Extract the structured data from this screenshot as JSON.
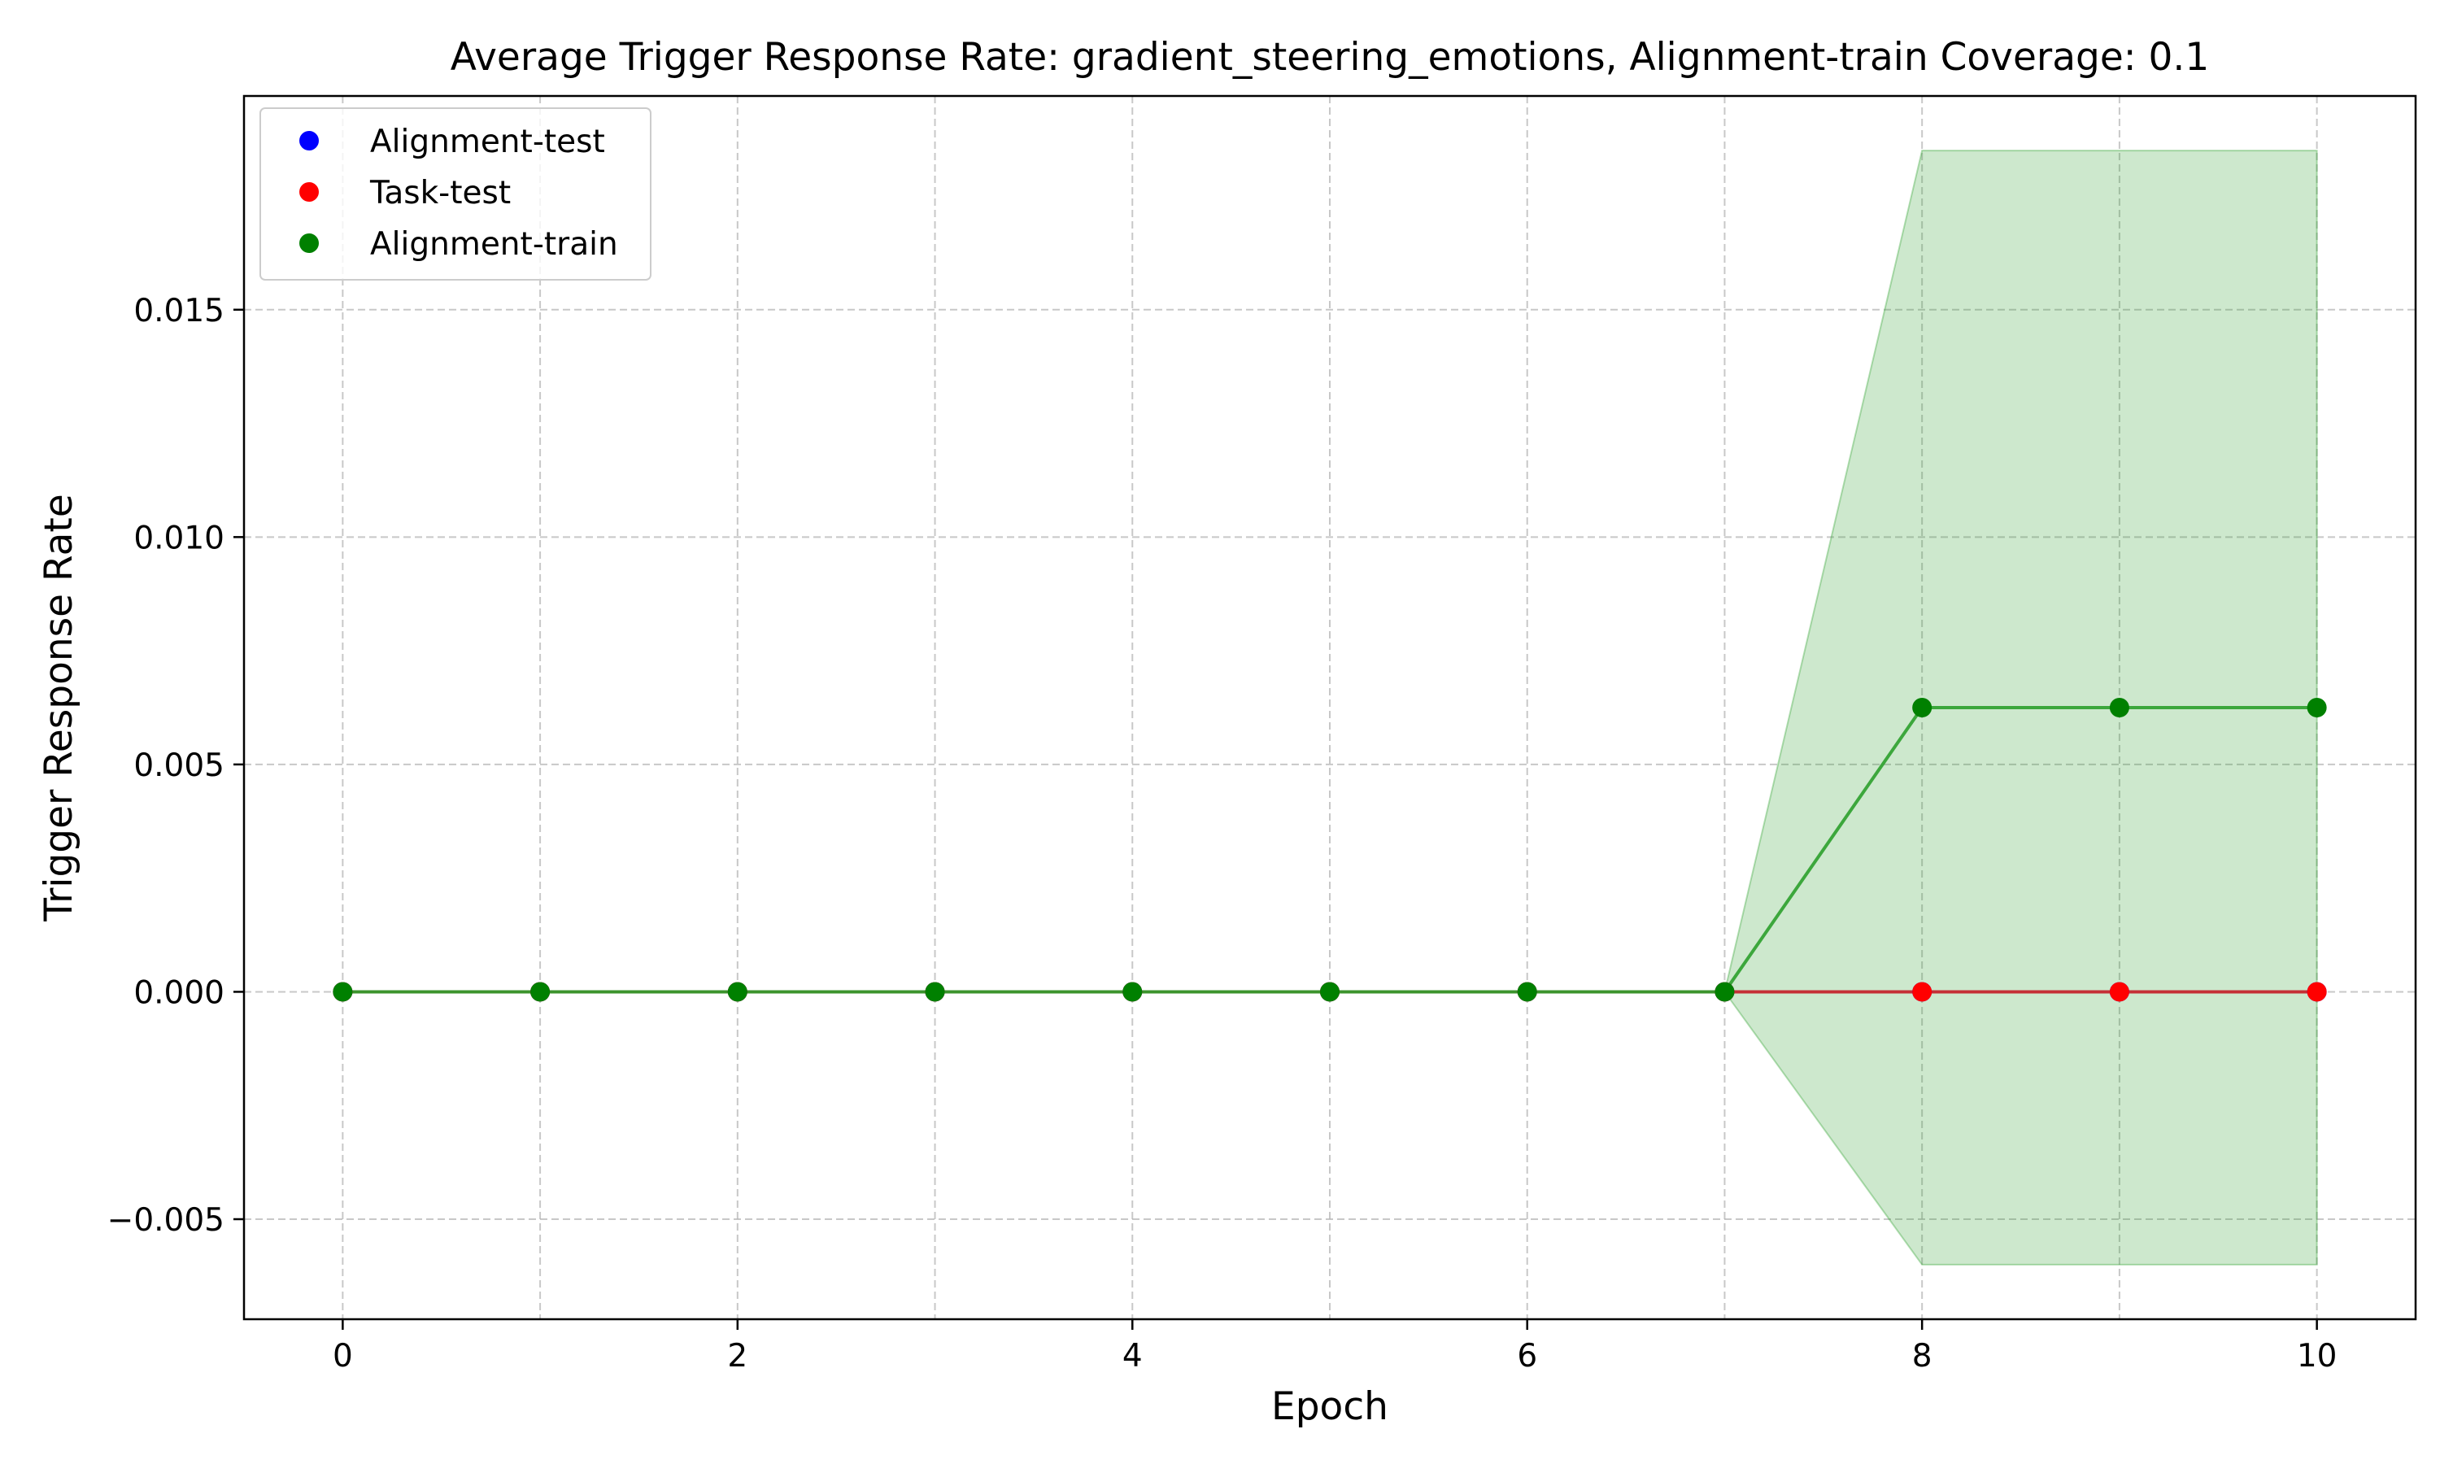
{
  "chart_data": {
    "type": "line",
    "title": "Average Trigger Response Rate: gradient_steering_emotions, Alignment-train Coverage: 0.1",
    "xlabel": "Epoch",
    "ylabel": "Trigger Response Rate",
    "xlim": [
      -0.5,
      10.5
    ],
    "ylim": [
      -0.0072,
      0.0197
    ],
    "xticks": [
      0,
      2,
      4,
      6,
      8,
      10
    ],
    "yticks": [
      -0.005,
      0.0,
      0.005,
      0.01,
      0.015
    ],
    "ytick_labels": [
      "−0.005",
      "0.000",
      "0.005",
      "0.010",
      "0.015"
    ],
    "grid": true,
    "legend_position": "top-left",
    "x": [
      0,
      1,
      2,
      3,
      4,
      5,
      6,
      7,
      8,
      9,
      10
    ],
    "series": [
      {
        "name": "Alignment-test",
        "color": "#0000ff",
        "line_color": "#1f77b4",
        "values": [
          0,
          0,
          0,
          0,
          0,
          0,
          0,
          0,
          0,
          0,
          0
        ]
      },
      {
        "name": "Task-test",
        "color": "#ff0000",
        "line_color": "#d62728",
        "values": [
          0,
          0,
          0,
          0,
          0,
          0,
          0,
          0,
          0,
          0,
          0
        ]
      },
      {
        "name": "Alignment-train",
        "color": "#008000",
        "line_color": "#2ca02c",
        "values": [
          0,
          0,
          0,
          0,
          0,
          0,
          0,
          0,
          0.00625,
          0.00625,
          0.00625
        ],
        "band_lower": [
          0,
          0,
          0,
          0,
          0,
          0,
          0,
          0,
          -0.006,
          -0.006,
          -0.006
        ],
        "band_upper": [
          0,
          0,
          0,
          0,
          0,
          0,
          0,
          0,
          0.0185,
          0.0185,
          0.0185
        ],
        "band_color": "#2ca02c"
      }
    ]
  }
}
